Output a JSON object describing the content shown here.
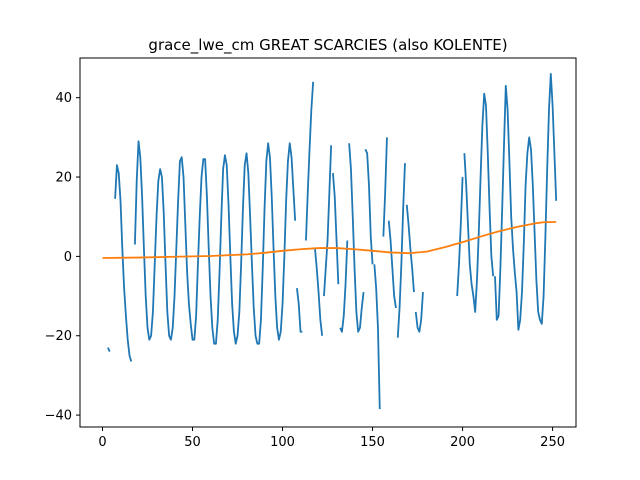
{
  "chart_data": {
    "type": "line",
    "title": "grace_lwe_cm GREAT SCARCIES (also KOLENTE)",
    "xlabel": "",
    "ylabel": "",
    "xlim": [
      -12.5,
      263
    ],
    "ylim": [
      -43,
      50
    ],
    "xticks": [
      0,
      50,
      100,
      150,
      200,
      250
    ],
    "yticks": [
      -40,
      -20,
      0,
      20,
      40
    ],
    "grid": false,
    "series": [
      {
        "color": "#1f77b4",
        "segments": [
          [
            [
              3,
              -23
            ],
            [
              4,
              -24
            ]
          ],
          [
            [
              7,
              14.5
            ],
            [
              8,
              23
            ],
            [
              9,
              21
            ],
            [
              10,
              14
            ],
            [
              11,
              2
            ],
            [
              12,
              -8
            ],
            [
              13,
              -15
            ],
            [
              14,
              -21
            ],
            [
              15,
              -25
            ],
            [
              16,
              -26.5
            ]
          ],
          [
            [
              18,
              3
            ],
            [
              19,
              19
            ],
            [
              20,
              29
            ],
            [
              21,
              25
            ],
            [
              22,
              15
            ],
            [
              23,
              2
            ],
            [
              24,
              -10
            ],
            [
              25,
              -18
            ],
            [
              26,
              -21
            ],
            [
              27,
              -20
            ],
            [
              28,
              -14
            ],
            [
              29,
              -2
            ],
            [
              30,
              10
            ],
            [
              31,
              19
            ],
            [
              32,
              22
            ],
            [
              33,
              20
            ],
            [
              34,
              11
            ],
            [
              35,
              -2
            ],
            [
              36,
              -14
            ],
            [
              37,
              -20
            ],
            [
              38,
              -21
            ],
            [
              39,
              -18
            ],
            [
              40,
              -10
            ],
            [
              41,
              2
            ],
            [
              42,
              14
            ],
            [
              43,
              24
            ],
            [
              44,
              25
            ],
            [
              45,
              20
            ],
            [
              46,
              8
            ],
            [
              47,
              -4
            ],
            [
              48,
              -12
            ],
            [
              49,
              -17
            ],
            [
              50,
              -21
            ],
            [
              51,
              -21
            ],
            [
              52,
              -15
            ],
            [
              53,
              -2
            ],
            [
              54,
              10
            ],
            [
              55,
              20
            ],
            [
              56,
              24.5
            ],
            [
              57,
              24.5
            ],
            [
              58,
              15
            ],
            [
              59,
              2
            ],
            [
              60,
              -10
            ],
            [
              61,
              -18
            ],
            [
              62,
              -22
            ],
            [
              63,
              -22
            ],
            [
              64,
              -16
            ],
            [
              65,
              -4
            ],
            [
              66,
              10
            ],
            [
              67,
              22
            ],
            [
              68,
              25.5
            ],
            [
              69,
              23
            ],
            [
              70,
              13
            ],
            [
              71,
              0
            ],
            [
              72,
              -12
            ],
            [
              73,
              -19
            ],
            [
              74,
              -22
            ],
            [
              75,
              -20
            ],
            [
              76,
              -14
            ],
            [
              77,
              -2
            ],
            [
              78,
              12
            ],
            [
              79,
              23
            ],
            [
              80,
              26
            ],
            [
              81,
              21
            ],
            [
              82,
              10
            ],
            [
              83,
              -2
            ],
            [
              84,
              -13
            ],
            [
              85,
              -20
            ],
            [
              86,
              -22
            ],
            [
              87,
              -22
            ],
            [
              88,
              -16
            ],
            [
              89,
              -3
            ],
            [
              90,
              12
            ],
            [
              91,
              24
            ],
            [
              92,
              28.5
            ],
            [
              93,
              25
            ],
            [
              94,
              15
            ],
            [
              95,
              2
            ],
            [
              96,
              -10
            ],
            [
              97,
              -18
            ],
            [
              98,
              -21
            ],
            [
              99,
              -19
            ],
            [
              100,
              -12
            ],
            [
              101,
              0
            ],
            [
              102,
              14
            ],
            [
              103,
              24
            ],
            [
              104,
              28.5
            ],
            [
              105,
              25
            ],
            [
              106,
              17
            ],
            [
              107,
              9
            ]
          ],
          [
            [
              108,
              -8
            ],
            [
              109,
              -12
            ],
            [
              110,
              -19
            ],
            [
              111,
              -19
            ]
          ],
          [
            [
              113,
              4
            ],
            [
              114,
              16
            ],
            [
              115,
              27
            ],
            [
              116,
              37
            ],
            [
              117,
              44
            ]
          ],
          [
            [
              118,
              2
            ],
            [
              119,
              -3
            ],
            [
              120,
              -9
            ],
            [
              121,
              -16
            ],
            [
              122,
              -20
            ]
          ],
          [
            [
              123,
              -10
            ],
            [
              124,
              -3
            ],
            [
              125,
              4
            ],
            [
              126,
              16
            ],
            [
              127,
              28
            ]
          ],
          [
            [
              128,
              21
            ],
            [
              129,
              15
            ],
            [
              130,
              4
            ],
            [
              131,
              -7
            ]
          ],
          [
            [
              132,
              -18
            ],
            [
              133,
              -19
            ],
            [
              134,
              -15
            ],
            [
              135,
              -7
            ],
            [
              136,
              4
            ]
          ],
          [
            [
              137,
              28.5
            ],
            [
              138,
              22
            ],
            [
              139,
              10
            ],
            [
              140,
              -3
            ],
            [
              141,
              -14
            ],
            [
              142,
              -19
            ],
            [
              143,
              -18
            ],
            [
              144,
              -13
            ],
            [
              145,
              -9
            ]
          ],
          [
            [
              146,
              27
            ],
            [
              147,
              26
            ],
            [
              148,
              18
            ],
            [
              149,
              5
            ],
            [
              150,
              -2
            ]
          ],
          [
            [
              151,
              -2
            ],
            [
              152,
              -8
            ],
            [
              153,
              -18
            ],
            [
              154,
              -38.5
            ]
          ],
          [
            [
              156,
              5
            ],
            [
              157,
              16
            ],
            [
              158,
              30
            ]
          ],
          [
            [
              159,
              9
            ],
            [
              160,
              4
            ],
            [
              161,
              -3
            ],
            [
              162,
              -10
            ],
            [
              163,
              -13
            ]
          ],
          [
            [
              164,
              -20.5
            ],
            [
              165,
              -13
            ],
            [
              166,
              -2
            ],
            [
              167,
              12
            ],
            [
              168,
              23.5
            ]
          ],
          [
            [
              169,
              13
            ],
            [
              170,
              8
            ],
            [
              171,
              2
            ],
            [
              172,
              -3
            ],
            [
              173,
              -9
            ]
          ],
          [
            [
              174,
              -14
            ],
            [
              175,
              -18
            ],
            [
              176,
              -19
            ],
            [
              177,
              -16
            ],
            [
              178,
              -9
            ]
          ],
          [
            [
              197,
              -10
            ],
            [
              198,
              -2
            ],
            [
              199,
              8
            ],
            [
              200,
              20
            ]
          ],
          [
            [
              201,
              26
            ],
            [
              202,
              18
            ],
            [
              203,
              8
            ],
            [
              204,
              -2
            ],
            [
              205,
              -7
            ],
            [
              206,
              -10
            ],
            [
              207,
              -14
            ],
            [
              208,
              -6
            ],
            [
              209,
              6
            ],
            [
              210,
              20
            ],
            [
              211,
              33
            ],
            [
              212,
              41
            ],
            [
              213,
              38
            ],
            [
              214,
              26
            ],
            [
              215,
              12
            ],
            [
              216,
              0
            ],
            [
              217,
              -5
            ]
          ],
          [
            [
              218,
              -5
            ],
            [
              219,
              -16
            ],
            [
              220,
              -15
            ],
            [
              221,
              -3
            ],
            [
              222,
              12
            ],
            [
              223,
              28
            ],
            [
              224,
              43
            ],
            [
              225,
              37
            ],
            [
              226,
              24
            ],
            [
              227,
              10
            ],
            [
              228,
              2
            ],
            [
              229,
              -4
            ],
            [
              230,
              -9
            ],
            [
              231,
              -18.5
            ],
            [
              232,
              -16
            ],
            [
              233,
              -9
            ],
            [
              234,
              3
            ],
            [
              235,
              18
            ],
            [
              236,
              26
            ],
            [
              237,
              30
            ],
            [
              238,
              27
            ],
            [
              239,
              18
            ],
            [
              240,
              6
            ],
            [
              241,
              -6
            ],
            [
              242,
              -14
            ],
            [
              243,
              -16
            ],
            [
              244,
              -17
            ],
            [
              245,
              -10
            ],
            [
              246,
              5
            ],
            [
              247,
              22
            ],
            [
              248,
              37
            ],
            [
              249,
              46
            ],
            [
              250,
              38
            ],
            [
              251,
              26
            ],
            [
              252,
              14
            ]
          ]
        ]
      },
      {
        "color": "#ff7f0e",
        "segments": [
          [
            [
              0,
              -0.4
            ],
            [
              20,
              -0.3
            ],
            [
              40,
              -0.1
            ],
            [
              60,
              0.1
            ],
            [
              80,
              0.5
            ],
            [
              90,
              0.9
            ],
            [
              100,
              1.4
            ],
            [
              110,
              1.8
            ],
            [
              120,
              2.1
            ],
            [
              130,
              2.1
            ],
            [
              140,
              1.8
            ],
            [
              150,
              1.4
            ],
            [
              160,
              1.0
            ],
            [
              170,
              0.8
            ],
            [
              180,
              1.2
            ],
            [
              190,
              2.3
            ],
            [
              200,
              3.6
            ],
            [
              210,
              5.0
            ],
            [
              220,
              6.3
            ],
            [
              230,
              7.4
            ],
            [
              240,
              8.3
            ],
            [
              245,
              8.6
            ],
            [
              252,
              8.7
            ]
          ]
        ]
      }
    ]
  }
}
